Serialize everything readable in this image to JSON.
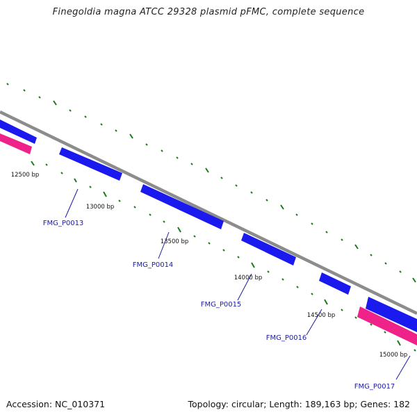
{
  "title": "Finegoldia magna ATCC 29328 plasmid pFMC, complete sequence",
  "footer": {
    "accession": "Accession: NC_010371",
    "summary": "Topology: circular; Length: 189,163 bp; Genes: 182"
  },
  "colors": {
    "backbone": "#8c8c8c",
    "forward_gene": "#1a1aee",
    "reverse_gene": "#ee2288",
    "tick": "#1a7a1a",
    "gene_label": "#1a1aa6"
  },
  "scale_labels": [
    "12500 bp",
    "13000 bp",
    "13500 bp",
    "14000 bp",
    "14500 bp",
    "15000 bp"
  ],
  "gene_labels": [
    "FMG_P0013",
    "FMG_P0014",
    "FMG_P0015",
    "FMG_P0016",
    "FMG_P0017"
  ]
}
